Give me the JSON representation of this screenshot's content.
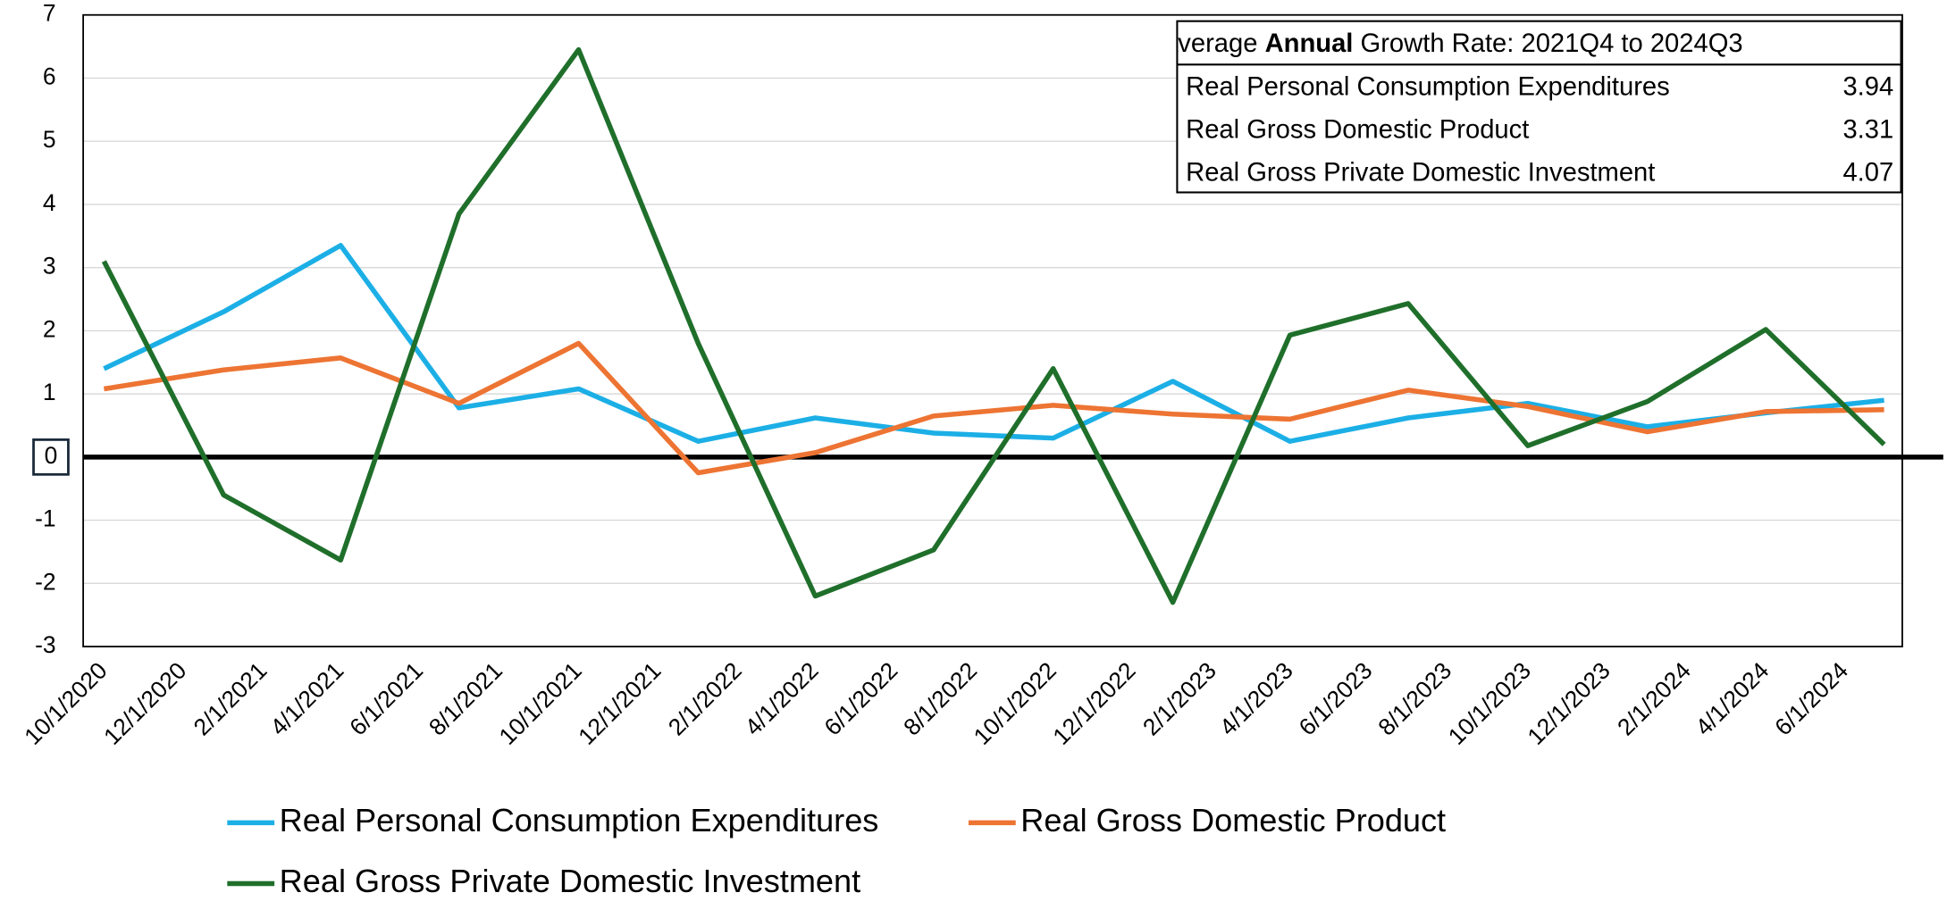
{
  "chart_data": {
    "type": "line",
    "x": [
      "2020-10-01",
      "2021-01-01",
      "2021-04-01",
      "2021-07-01",
      "2021-10-01",
      "2022-01-01",
      "2022-04-01",
      "2022-07-01",
      "2022-10-01",
      "2023-01-01",
      "2023-04-01",
      "2023-07-01",
      "2023-10-01",
      "2024-01-01",
      "2024-04-01",
      "2024-07-01"
    ],
    "series": [
      {
        "name": "Real Personal Consumption Expenditures",
        "color": "#1cafe6",
        "values": [
          1.4,
          2.3,
          3.35,
          0.78,
          1.08,
          0.25,
          0.62,
          0.38,
          0.3,
          1.2,
          0.25,
          0.62,
          0.85,
          0.48,
          0.7,
          0.9
        ]
      },
      {
        "name": "Real Gross Domestic Product",
        "color": "#ed7433",
        "values": [
          1.08,
          1.38,
          1.57,
          0.85,
          1.8,
          -0.25,
          0.07,
          0.65,
          0.82,
          0.68,
          0.6,
          1.06,
          0.8,
          0.4,
          0.72,
          0.75
        ]
      },
      {
        "name": "Real Gross Private Domestic Investment",
        "color": "#1f6f2b",
        "values": [
          3.1,
          -0.6,
          -1.63,
          3.85,
          6.45,
          1.8,
          -2.2,
          -1.47,
          1.4,
          -2.3,
          1.93,
          2.43,
          0.18,
          0.88,
          2.02,
          0.2
        ]
      }
    ],
    "xlim": [
      "2020-09-15",
      "2024-07-15"
    ],
    "xticks": [
      {
        "value": "2020-10-01",
        "label": "10/1/2020"
      },
      {
        "value": "2020-12-01",
        "label": "12/1/2020"
      },
      {
        "value": "2021-02-01",
        "label": "2/1/2021"
      },
      {
        "value": "2021-04-01",
        "label": "4/1/2021"
      },
      {
        "value": "2021-06-01",
        "label": "6/1/2021"
      },
      {
        "value": "2021-08-01",
        "label": "8/1/2021"
      },
      {
        "value": "2021-10-01",
        "label": "10/1/2021"
      },
      {
        "value": "2021-12-01",
        "label": "12/1/2021"
      },
      {
        "value": "2022-02-01",
        "label": "2/1/2022"
      },
      {
        "value": "2022-04-01",
        "label": "4/1/2022"
      },
      {
        "value": "2022-06-01",
        "label": "6/1/2022"
      },
      {
        "value": "2022-08-01",
        "label": "8/1/2022"
      },
      {
        "value": "2022-10-01",
        "label": "10/1/2022"
      },
      {
        "value": "2022-12-01",
        "label": "12/1/2022"
      },
      {
        "value": "2023-02-01",
        "label": "2/1/2023"
      },
      {
        "value": "2023-04-01",
        "label": "4/1/2023"
      },
      {
        "value": "2023-06-01",
        "label": "6/1/2023"
      },
      {
        "value": "2023-08-01",
        "label": "8/1/2023"
      },
      {
        "value": "2023-10-01",
        "label": "10/1/2023"
      },
      {
        "value": "2023-12-01",
        "label": "12/1/2023"
      },
      {
        "value": "2024-02-01",
        "label": "2/1/2024"
      },
      {
        "value": "2024-04-01",
        "label": "4/1/2024"
      },
      {
        "value": "2024-06-01",
        "label": "6/1/2024"
      }
    ],
    "ylim": [
      -3,
      7
    ],
    "yticks": [
      -3,
      -2,
      -1,
      0,
      1,
      2,
      3,
      4,
      5,
      6,
      7
    ],
    "grid": true,
    "legend": "bottom",
    "table": {
      "title": [
        "Average ",
        "Annual",
        " Growth Rate: 2021Q4 to 2024Q3"
      ],
      "rows": [
        [
          "Real Personal Consumption Expenditures",
          "3.94"
        ],
        [
          "Real Gross Domestic Product",
          "3.31"
        ],
        [
          "Real Gross Private Domestic Investment",
          "4.07"
        ]
      ]
    }
  }
}
